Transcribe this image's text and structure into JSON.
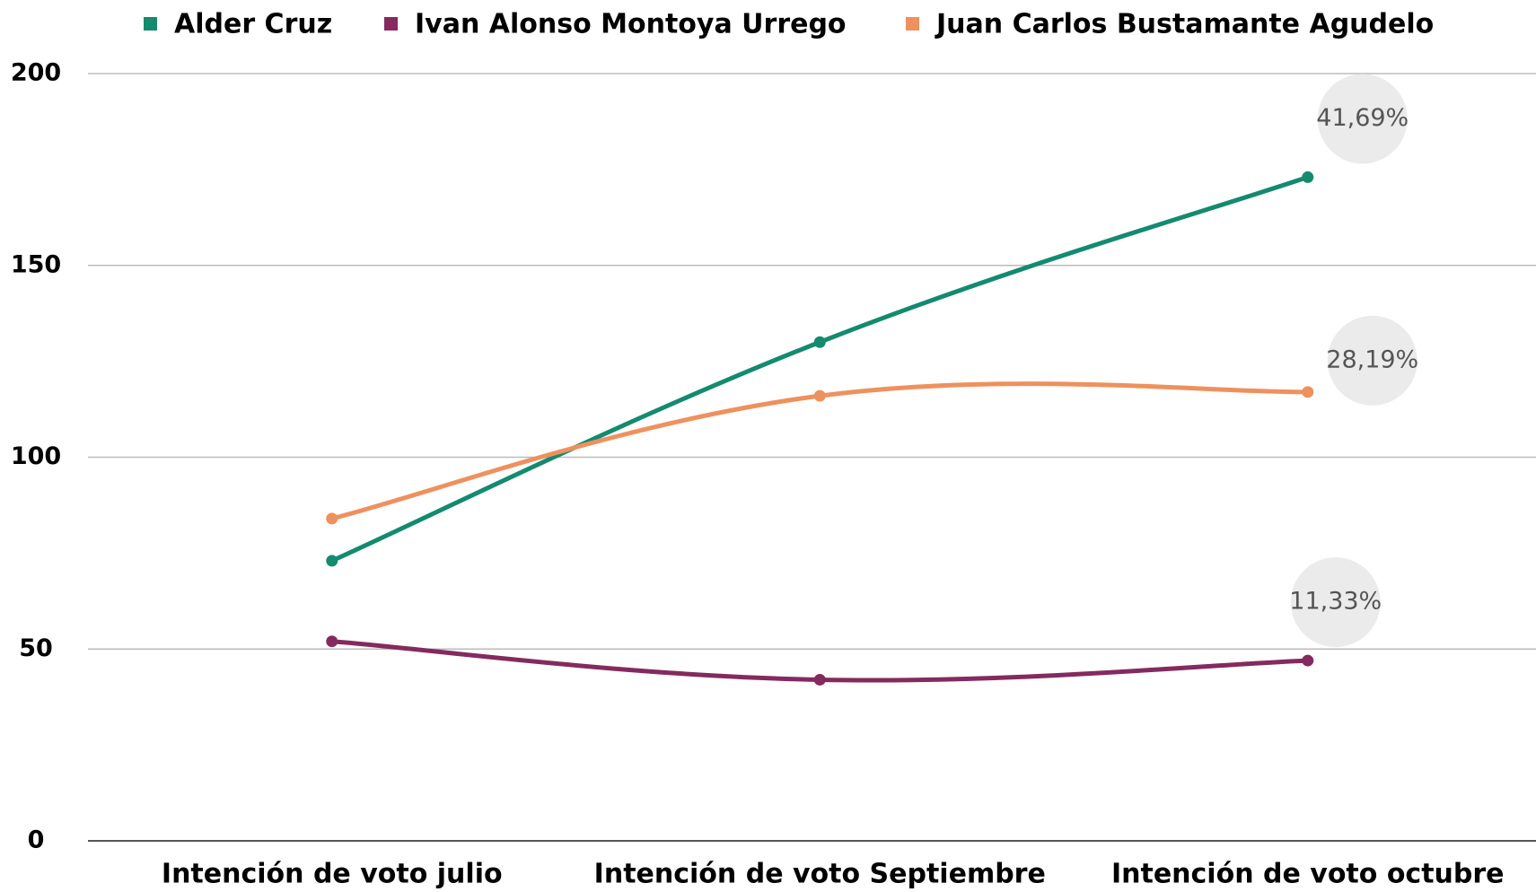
{
  "chart_data": {
    "type": "line",
    "categories": [
      "Intención de voto julio",
      "Intención de voto Septiembre",
      "Intención de voto octubre"
    ],
    "series": [
      {
        "name": "Alder Cruz",
        "color": "#148a6f",
        "values": [
          73,
          130,
          173
        ],
        "annotation": "41,69%"
      },
      {
        "name": "Ivan Alonso Montoya Urrego",
        "color": "#842a5f",
        "values": [
          52,
          42,
          47
        ],
        "annotation": "11,33%"
      },
      {
        "name": "Juan Carlos Bustamante Agudelo",
        "color": "#ee915e",
        "values": [
          84,
          116,
          117
        ],
        "annotation": "28,19%"
      }
    ],
    "ylim": [
      0,
      200
    ],
    "yticks": [
      0,
      50,
      100,
      150,
      200
    ],
    "grid": true,
    "legend": "top"
  }
}
